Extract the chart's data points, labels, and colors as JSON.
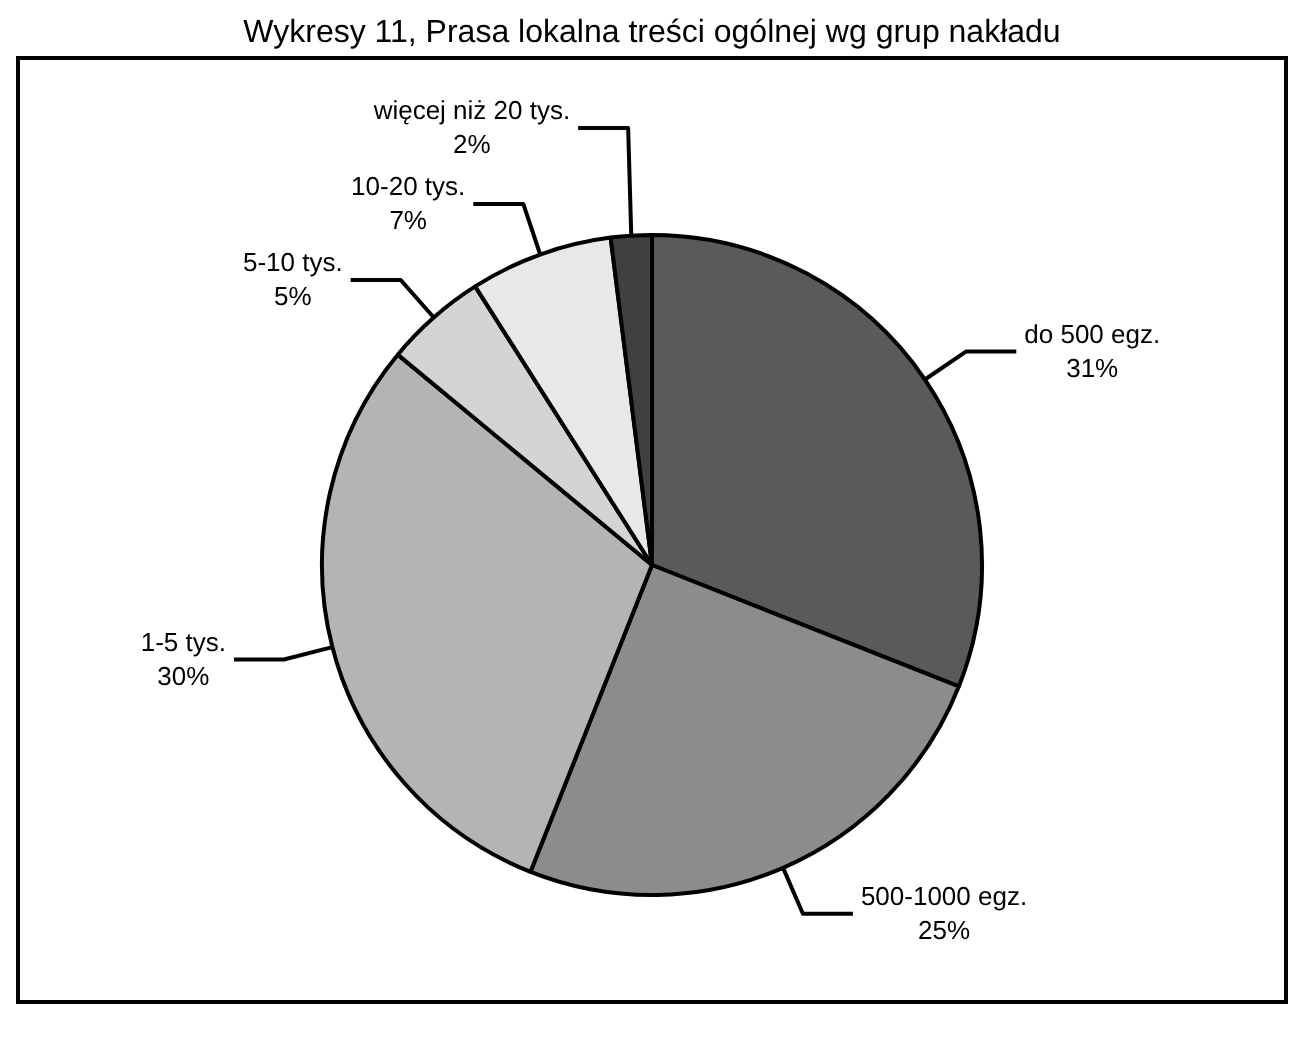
{
  "chart_data": {
    "type": "pie",
    "title": "Wykresy 11, Prasa lokalna treści ogólnej wg grup nakładu",
    "categories": [
      "do 500 egz.",
      "500-1000 egz.",
      "1-5 tys.",
      "5-10 tys.",
      "10-20 tys.",
      "więcej niż 20 tys."
    ],
    "values": [
      31,
      25,
      30,
      5,
      7,
      2
    ],
    "value_labels": [
      "31%",
      "25%",
      "30%",
      "5%",
      "7%",
      "2%"
    ],
    "colors": [
      "#5a5a5a",
      "#8c8c8c",
      "#b4b4b4",
      "#d4d4d4",
      "#e8e8e8",
      "#404040"
    ],
    "legend": false
  }
}
